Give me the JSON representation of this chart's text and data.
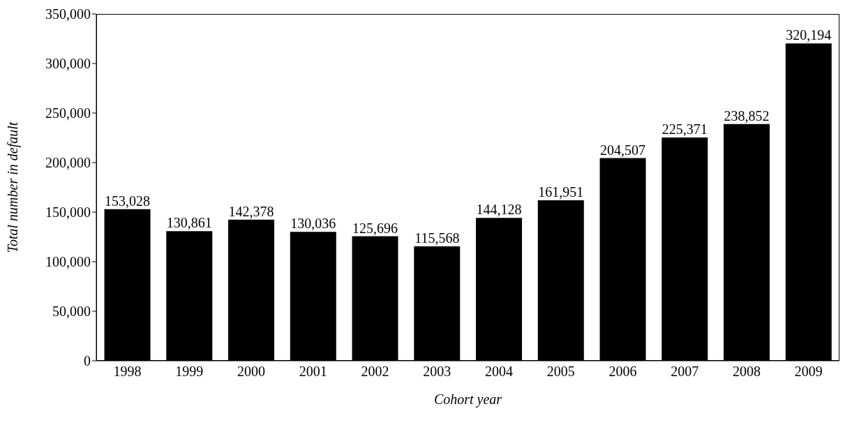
{
  "chart_data": {
    "type": "bar",
    "xlabel": "Cohort year",
    "ylabel": "Total number in default",
    "categories": [
      "1998",
      "1999",
      "2000",
      "2001",
      "2002",
      "2003",
      "2004",
      "2005",
      "2006",
      "2007",
      "2008",
      "2009"
    ],
    "values": [
      153028,
      130861,
      142378,
      130036,
      125696,
      115568,
      144128,
      161951,
      204507,
      225371,
      238852,
      320194
    ],
    "value_labels": [
      "153,028",
      "130,861",
      "142,378",
      "130,036",
      "125,696",
      "115,568",
      "144,128",
      "161,951",
      "204,507",
      "225,371",
      "238,852",
      "320,194"
    ],
    "color": "#000000",
    "ylim": [
      0,
      350000
    ],
    "yticks": [
      0,
      {
        "value": 50000,
        "label": "50,000"
      },
      {
        "value": 100000,
        "label": "100,000"
      },
      {
        "value": 150000,
        "label": "150,000"
      },
      {
        "value": 200000,
        "label": "200,000"
      },
      {
        "value": 250000,
        "label": "250,000"
      },
      {
        "value": 300000,
        "label": "300,000"
      },
      {
        "value": 350000,
        "label": "350,000"
      }
    ],
    "grid": false,
    "legend": false
  }
}
